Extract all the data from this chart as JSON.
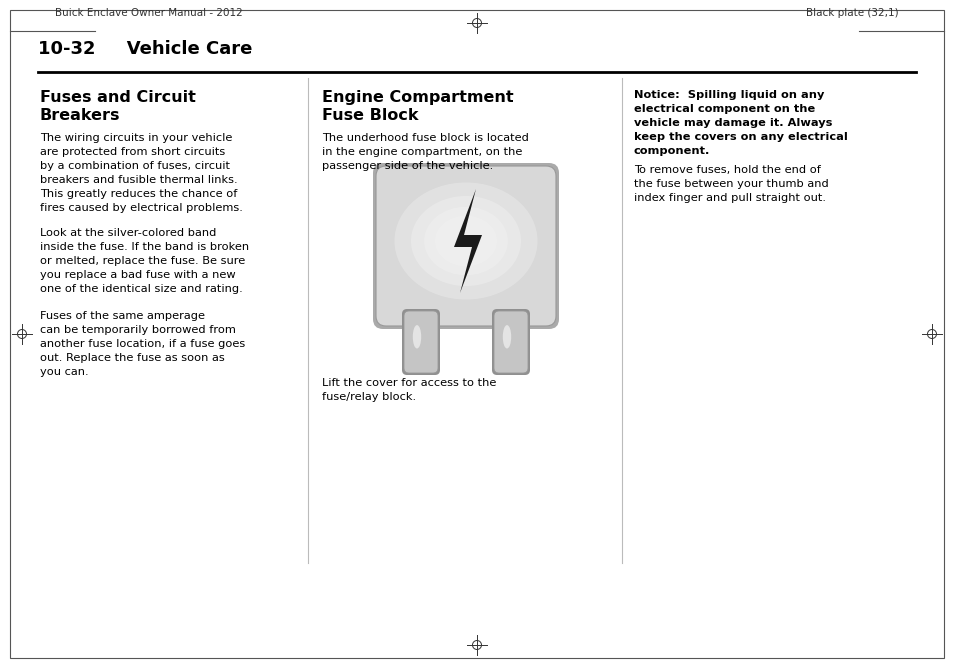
{
  "bg_color": "#ffffff",
  "border_color": "#000000",
  "header_left": "Buick Enclave Owner Manual - 2012",
  "header_right": "Black plate (32,1)",
  "section_title": "10-32     Vehicle Care",
  "col1_title": "Fuses and Circuit\nBreakers",
  "col1_para1": "The wiring circuits in your vehicle\nare protected from short circuits\nby a combination of fuses, circuit\nbreakers and fusible thermal links.\nThis greatly reduces the chance of\nfires caused by electrical problems.",
  "col1_para2": "Look at the silver-colored band\ninside the fuse. If the band is broken\nor melted, replace the fuse. Be sure\nyou replace a bad fuse with a new\none of the identical size and rating.",
  "col1_para3": "Fuses of the same amperage\ncan be temporarily borrowed from\nanother fuse location, if a fuse goes\nout. Replace the fuse as soon as\nyou can.",
  "col2_title": "Engine Compartment\nFuse Block",
  "col2_para1": "The underhood fuse block is located\nin the engine compartment, on the\npassenger side of the vehicle.",
  "col2_caption": "Lift the cover for access to the\nfuse/relay block.",
  "col3_notice_bold": "Notice:  Spilling liquid on any\nelectrical component on the\nvehicle may damage it. Always\nkeep the covers on any electrical\ncomponent.",
  "col3_para1": "To remove fuses, hold the end of\nthe fuse between your thumb and\nindex finger and pull straight out.",
  "lightning_color": "#1a1a1a"
}
